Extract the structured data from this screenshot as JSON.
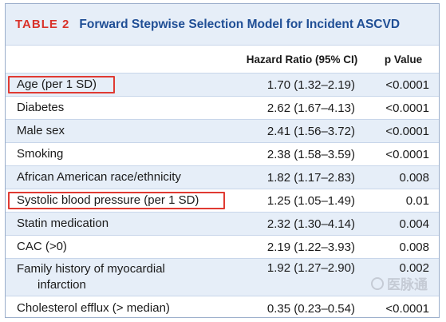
{
  "table": {
    "number": "TABLE 2",
    "title": "Forward Stepwise Selection Model for Incident ASCVD",
    "headers": {
      "variable": "",
      "hazard_ratio": "Hazard Ratio (95% CI)",
      "p_value": "p Value"
    },
    "rows": [
      {
        "variable": "Age (per 1 SD)",
        "hr": "1.70 (1.32–2.19)",
        "p": "<0.0001"
      },
      {
        "variable": "Diabetes",
        "hr": "2.62 (1.67–4.13)",
        "p": "<0.0001"
      },
      {
        "variable": "Male sex",
        "hr": "2.41 (1.56–3.72)",
        "p": "<0.0001"
      },
      {
        "variable": "Smoking",
        "hr": "2.38 (1.58–3.59)",
        "p": "<0.0001"
      },
      {
        "variable": "African American race/ethnicity",
        "hr": "1.82 (1.17–2.83)",
        "p": "0.008"
      },
      {
        "variable": "Systolic blood pressure (per 1 SD)",
        "hr": "1.25 (1.05–1.49)",
        "p": "0.01"
      },
      {
        "variable": "Statin medication",
        "hr": "2.32 (1.30–4.14)",
        "p": "0.004"
      },
      {
        "variable": "CAC (>0)",
        "hr": "2.19 (1.22–3.93)",
        "p": "0.008"
      },
      {
        "variable": "Family history of myocardial",
        "variable_line2": "infarction",
        "hr": "1.92 (1.27–2.90)",
        "p": "0.002"
      },
      {
        "variable": "Cholesterol efflux (> median)",
        "hr": "0.35 (0.23–0.54)",
        "p": "<0.0001"
      }
    ]
  },
  "colors": {
    "table_number": "#d9322a",
    "title": "#1f4e95",
    "stripe": "#e6eef8",
    "highlight_box": "#e03a32"
  },
  "watermark": {
    "icon": "watermark-logo-icon",
    "text": "医脉通"
  }
}
